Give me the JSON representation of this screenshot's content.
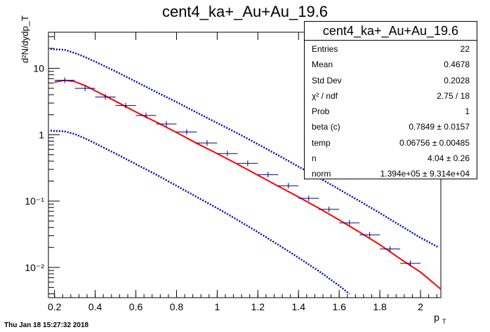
{
  "chart_data": {
    "type": "scatter",
    "title": "cent4_ka+_Au+Au_19.6",
    "xlabel": "p_T",
    "ylabel": "d²N/dydp_T",
    "xlim": [
      0.17,
      2.1
    ],
    "ylim": [
      0.0035,
      35
    ],
    "yscale": "log",
    "xticks": [
      0.2,
      0.4,
      0.6,
      0.8,
      1,
      1.2,
      1.4,
      1.6,
      1.8,
      2
    ],
    "xtick_labels": [
      "0.2",
      "0.4",
      "0.6",
      "0.8",
      "1",
      "1.2",
      "1.4",
      "1.6",
      "1.8",
      "2"
    ],
    "yticks": [
      0.01,
      0.1,
      1,
      10
    ],
    "ytick_labels": [
      "10⁻²",
      "10⁻¹",
      "1",
      "10"
    ],
    "series": [
      {
        "kind": "points",
        "color": "#000080",
        "x": [
          0.25,
          0.35,
          0.45,
          0.55,
          0.65,
          0.75,
          0.85,
          0.95,
          1.05,
          1.15,
          1.25,
          1.35,
          1.45,
          1.55,
          1.65,
          1.75,
          1.85,
          1.95
        ],
        "xerr": 0.05,
        "y": [
          6.6,
          5.0,
          3.7,
          2.75,
          1.95,
          1.45,
          1.1,
          0.75,
          0.52,
          0.37,
          0.25,
          0.17,
          0.11,
          0.075,
          0.047,
          0.031,
          0.019,
          0.0115
        ]
      },
      {
        "kind": "fit",
        "color": "#ff0000",
        "x": [
          0.2,
          0.25,
          0.3,
          0.35,
          0.4,
          0.5,
          0.6,
          0.7,
          0.8,
          0.9,
          1.0,
          1.1,
          1.2,
          1.3,
          1.4,
          1.5,
          1.6,
          1.7,
          1.8,
          1.9,
          2.0,
          2.1
        ],
        "y": [
          6.2,
          6.6,
          6.3,
          5.5,
          4.6,
          3.2,
          2.2,
          1.55,
          1.08,
          0.74,
          0.52,
          0.36,
          0.245,
          0.168,
          0.115,
          0.078,
          0.052,
          0.034,
          0.022,
          0.0135,
          0.0085,
          0.0047
        ]
      },
      {
        "kind": "band-upper",
        "color": "#0000cc",
        "x": [
          0.18,
          0.25,
          0.3,
          0.35,
          0.4,
          0.5,
          0.6,
          0.7,
          0.8,
          0.9,
          1.0,
          1.1,
          1.2,
          1.3,
          1.4,
          1.5,
          1.6,
          1.7,
          1.8,
          1.9,
          2.0,
          2.09
        ],
        "y": [
          19.5,
          19.0,
          17.0,
          14.8,
          12.6,
          9.0,
          6.3,
          4.4,
          3.1,
          2.15,
          1.5,
          1.05,
          0.72,
          0.49,
          0.33,
          0.225,
          0.15,
          0.1,
          0.066,
          0.043,
          0.028,
          0.02
        ]
      },
      {
        "kind": "band-lower",
        "color": "#0000cc",
        "x": [
          0.18,
          0.25,
          0.3,
          0.35,
          0.4,
          0.5,
          0.6,
          0.7,
          0.8,
          0.9,
          1.0,
          1.1,
          1.2,
          1.3,
          1.4,
          1.5,
          1.6,
          1.65
        ],
        "y": [
          1.15,
          1.12,
          1.02,
          0.88,
          0.74,
          0.52,
          0.36,
          0.25,
          0.17,
          0.115,
          0.078,
          0.052,
          0.034,
          0.022,
          0.014,
          0.0088,
          0.0053,
          0.004
        ]
      }
    ],
    "legend": "none"
  },
  "stats_box": {
    "title": "cent4_ka+_Au+Au_19.6",
    "rows": [
      {
        "k": "Entries",
        "v": "22"
      },
      {
        "k": "Mean",
        "v": "0.4678"
      },
      {
        "k": "Std Dev",
        "v": "0.2028"
      },
      {
        "k": "χ² / ndf",
        "v": "2.75 / 18"
      },
      {
        "k": "Prob",
        "v": "1"
      },
      {
        "k": "beta (c)",
        "v": "0.7849 ± 0.0157"
      },
      {
        "k": "temp",
        "v": "0.06756 ± 0.00485"
      },
      {
        "k": "n",
        "v": "4.04 ± 0.26"
      },
      {
        "k": "norm",
        "v": "1.394e+05 ± 9.314e+04"
      }
    ]
  },
  "footer": "Thu Jan 18 15:27:32 2018"
}
